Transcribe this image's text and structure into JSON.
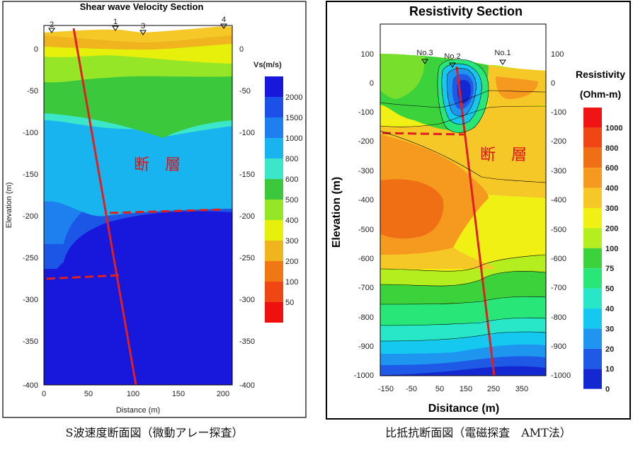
{
  "left_panel": {
    "title": "Shear wave Velocity Section",
    "xlabel": "Distance (m)",
    "ylabel": "Elevation (m)",
    "x_ticks": [
      "0",
      "50",
      "100",
      "150",
      "200"
    ],
    "y_ticks": [
      "0",
      "-50",
      "-100",
      "-150",
      "-200",
      "-250",
      "-300",
      "-350",
      "-400"
    ],
    "station_labels": [
      "2",
      "1",
      "3",
      "4"
    ],
    "fault_label": "断　層",
    "colorbar": {
      "title": "Vs(m/s)",
      "labels": [
        "2000",
        "1500",
        "1000",
        "800",
        "600",
        "500",
        "400",
        "300",
        "200",
        "100",
        "50"
      ],
      "colors": [
        "#1818dc",
        "#1c50e8",
        "#1e80ee",
        "#18b4f0",
        "#3ce6c8",
        "#3cc83c",
        "#96e628",
        "#e6f00a",
        "#f0b41e",
        "#f07814",
        "#f04614",
        "#f01010"
      ]
    },
    "caption": "S波速度断面図（微動アレー探査）"
  },
  "right_panel": {
    "title": "Resistivity Section",
    "xlabel": "Disitance (m)",
    "ylabel": "Elevation (m)",
    "x_ticks": [
      "-150",
      "-50",
      "50",
      "150",
      "250",
      "350"
    ],
    "y_ticks": [
      "100",
      "0",
      "-100",
      "-200",
      "-300",
      "-400",
      "-500",
      "-600",
      "-700",
      "-800",
      "-900",
      "-1000"
    ],
    "station_labels": [
      "No.3",
      "No.2",
      "No.1"
    ],
    "fault_label": "断　層",
    "colorbar": {
      "title_line1": "Resistivity",
      "title_line2": "(Ohm-m)",
      "labels": [
        "1000",
        "800",
        "600",
        "400",
        "300",
        "200",
        "100",
        "75",
        "50",
        "40",
        "30",
        "20",
        "10",
        "0"
      ],
      "colors": [
        "#f01414",
        "#f04614",
        "#f06e14",
        "#f59a1e",
        "#f5c828",
        "#f0f014",
        "#b4ee1e",
        "#3cd23c",
        "#28e678",
        "#28e6c8",
        "#14c8f0",
        "#1e96f0",
        "#1e5ae6",
        "#1428d2"
      ]
    },
    "caption": "比抵抗断面図（電磁探査　AMT法）"
  }
}
